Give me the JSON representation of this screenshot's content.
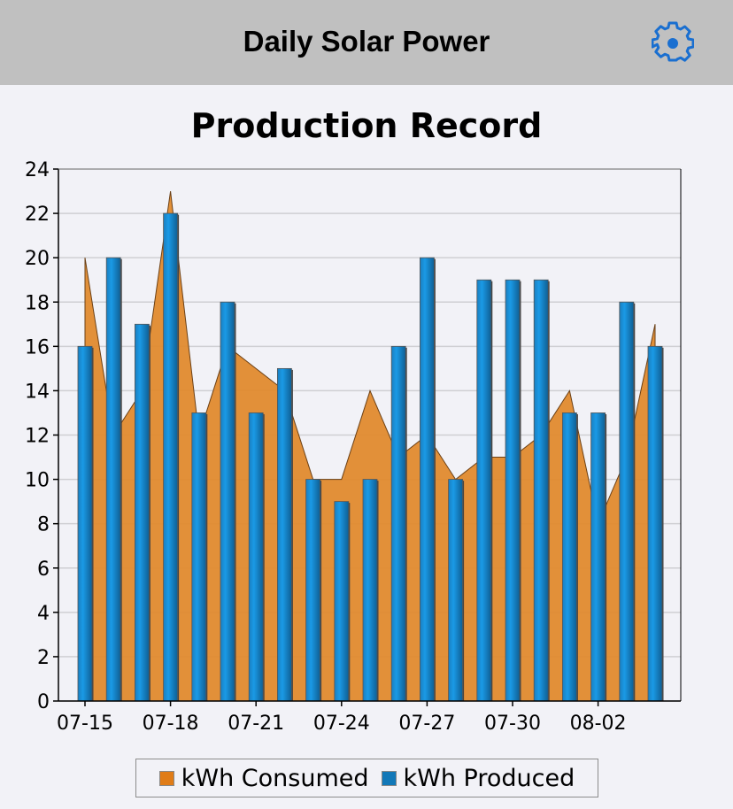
{
  "header": {
    "title": "Daily Solar Power",
    "settings_icon": "gear-icon",
    "accent": "#1a6fd0"
  },
  "chart_data": {
    "type": "bar",
    "title": "Production Record",
    "categories": [
      "07-15",
      "07-16",
      "07-17",
      "07-18",
      "07-19",
      "07-20",
      "07-21",
      "07-22",
      "07-23",
      "07-24",
      "07-25",
      "07-26",
      "07-27",
      "07-28",
      "07-29",
      "07-30",
      "07-31",
      "08-01",
      "08-02",
      "08-03",
      "08-04"
    ],
    "x_tick_labels": [
      "07-15",
      "07-18",
      "07-21",
      "07-24",
      "07-27",
      "07-30",
      "08-02"
    ],
    "series": [
      {
        "name": "kWh Consumed",
        "type": "area",
        "color": "#e08a2e",
        "values": [
          20,
          12,
          14,
          23,
          12,
          16,
          15,
          14,
          10,
          10,
          14,
          11,
          12,
          10,
          11,
          11,
          12,
          14,
          8,
          11,
          17
        ]
      },
      {
        "name": "kWh Produced",
        "type": "bar",
        "color": "#1282c8",
        "values": [
          16,
          20,
          17,
          22,
          13,
          18,
          13,
          15,
          10,
          9,
          10,
          16,
          20,
          10,
          19,
          19,
          19,
          13,
          13,
          18,
          16
        ]
      }
    ],
    "ylim": [
      0,
      24
    ],
    "yticks": [
      0,
      2,
      4,
      6,
      8,
      10,
      12,
      14,
      16,
      18,
      20,
      22,
      24
    ],
    "grid": true,
    "legend_position": "bottom"
  }
}
